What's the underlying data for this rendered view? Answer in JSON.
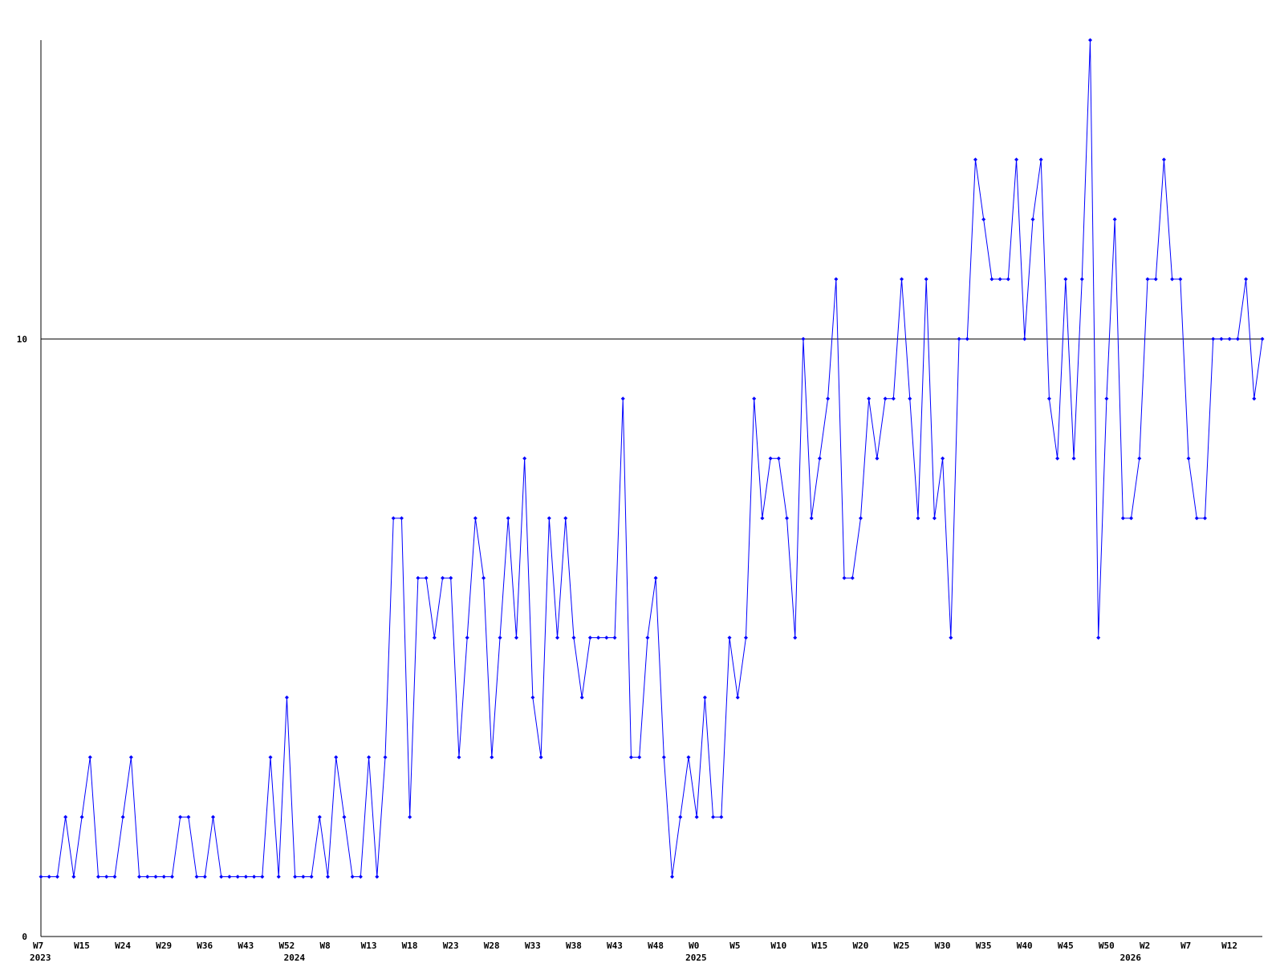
{
  "chart_data": {
    "type": "line",
    "color": "#0000ff",
    "categories": [
      "W7",
      null,
      null,
      null,
      null,
      "W15",
      null,
      null,
      null,
      null,
      "W24",
      null,
      null,
      null,
      null,
      "W29",
      null,
      null,
      null,
      null,
      "W36",
      null,
      null,
      null,
      null,
      "W43",
      null,
      null,
      null,
      null,
      "W52",
      null,
      null,
      null,
      null,
      "W8",
      null,
      null,
      null,
      null,
      "W13",
      null,
      null,
      null,
      null,
      "W18",
      null,
      null,
      null,
      null,
      "W23",
      null,
      null,
      null,
      null,
      "W28",
      null,
      null,
      null,
      null,
      "W33",
      null,
      null,
      null,
      null,
      "W38",
      null,
      null,
      null,
      null,
      "W43",
      null,
      null,
      null,
      null,
      "W48",
      null,
      null,
      null,
      null,
      "W0",
      null,
      null,
      null,
      null,
      "W5",
      null,
      null,
      null,
      null,
      "W10",
      null,
      null,
      null,
      null,
      "W15",
      null,
      null,
      null,
      null,
      "W20",
      null,
      null,
      null,
      null,
      "W25",
      null,
      null,
      null,
      null,
      "W30",
      null,
      null,
      null,
      null,
      "W35",
      null,
      null,
      null,
      null,
      "W40",
      null,
      null,
      null,
      null,
      "W45",
      null,
      null,
      null,
      null,
      "W50",
      null,
      null,
      null,
      null,
      "W2",
      null,
      null,
      null,
      null,
      "W7",
      null,
      null,
      null,
      null,
      "W12",
      null,
      null,
      null,
      null
    ],
    "year_labels": [
      "2023",
      null,
      null,
      null,
      null,
      null,
      null,
      null,
      null,
      null,
      null,
      null,
      null,
      null,
      null,
      null,
      null,
      null,
      null,
      null,
      null,
      null,
      null,
      null,
      null,
      null,
      null,
      null,
      null,
      null,
      null,
      "2024",
      null,
      null,
      null,
      null,
      null,
      null,
      null,
      null,
      null,
      null,
      null,
      null,
      null,
      null,
      null,
      null,
      null,
      null,
      null,
      null,
      null,
      null,
      null,
      null,
      null,
      null,
      null,
      null,
      null,
      null,
      null,
      null,
      null,
      null,
      null,
      null,
      null,
      null,
      null,
      null,
      null,
      null,
      null,
      null,
      null,
      null,
      null,
      null,
      "2025",
      null,
      null,
      null,
      null,
      null,
      null,
      null,
      null,
      null,
      null,
      null,
      null,
      null,
      null,
      null,
      null,
      null,
      null,
      null,
      null,
      null,
      null,
      null,
      null,
      null,
      null,
      null,
      null,
      null,
      null,
      null,
      null,
      null,
      null,
      null,
      null,
      null,
      null,
      null,
      null,
      null,
      null,
      null,
      null,
      null,
      null,
      null,
      null,
      null,
      null,
      null,
      null,
      "2026",
      null,
      null,
      null,
      null,
      null,
      null,
      null,
      null,
      null,
      null,
      null,
      null,
      null,
      null,
      null,
      null
    ],
    "values": [
      1,
      1,
      1,
      2,
      1,
      2,
      3,
      1,
      1,
      1,
      2,
      3,
      1,
      1,
      1,
      1,
      1,
      2,
      2,
      1,
      1,
      2,
      1,
      1,
      1,
      1,
      1,
      1,
      3,
      1,
      4,
      1,
      1,
      1,
      2,
      1,
      3,
      2,
      1,
      1,
      3,
      1,
      3,
      7,
      7,
      2,
      6,
      6,
      5,
      6,
      6,
      3,
      5,
      7,
      6,
      3,
      5,
      7,
      5,
      8,
      4,
      3,
      7,
      5,
      7,
      5,
      4,
      5,
      5,
      5,
      5,
      9,
      3,
      3,
      5,
      6,
      3,
      1,
      2,
      3,
      2,
      4,
      2,
      2,
      5,
      4,
      5,
      9,
      7,
      8,
      8,
      7,
      5,
      10,
      7,
      8,
      9,
      11,
      6,
      6,
      7,
      9,
      8,
      9,
      9,
      11,
      9,
      7,
      11,
      7,
      8,
      5,
      10,
      10,
      13,
      12,
      11,
      11,
      11,
      13,
      10,
      12,
      13,
      9,
      8,
      11,
      8,
      11,
      15,
      5,
      9,
      12,
      7,
      7,
      8,
      11,
      11,
      13,
      11,
      11,
      8,
      7,
      7,
      10,
      10,
      10,
      10,
      11,
      9,
      10
    ],
    "ylim": [
      0,
      15
    ],
    "yticks": [
      0,
      10
    ],
    "grid": true
  }
}
